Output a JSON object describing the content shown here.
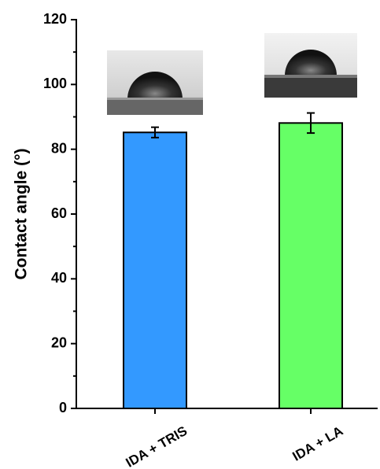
{
  "chart_data": {
    "type": "bar",
    "y_label": "Contact angle (°)",
    "categories": [
      "IDA + TRIS",
      "IDA + LA"
    ],
    "values": [
      85.2,
      88.1
    ],
    "errors": [
      1.6,
      3.1
    ],
    "colors": [
      "#3399ff",
      "#66ff66"
    ],
    "ylim": [
      0,
      120
    ],
    "yticks": [
      0,
      20,
      40,
      60,
      80,
      100,
      120
    ],
    "yminorticks": [
      10,
      30,
      50,
      70,
      90,
      110
    ]
  }
}
